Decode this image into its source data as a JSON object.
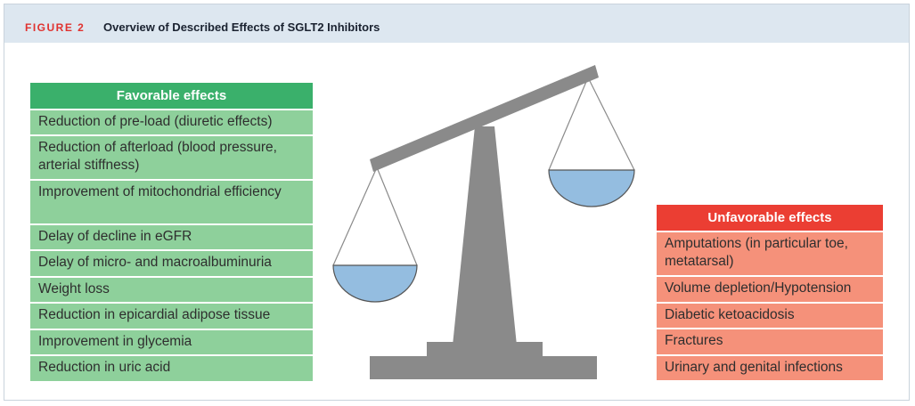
{
  "figure": {
    "label": "FIGURE 2",
    "title": "Overview of Described Effects of SGLT2 Inhibitors"
  },
  "favorable": {
    "header": "Favorable effects",
    "items": [
      "Reduction of pre-load (diuretic effects)",
      "Reduction of afterload (blood pressure, arterial stiffness)",
      "Improvement of mitochondrial efficiency",
      "Delay of decline in eGFR",
      "Delay of micro- and macroalbuminuria",
      "Weight loss",
      "Reduction in epicardial adipose tissue",
      "Improvement in glycemia",
      "Reduction in uric acid"
    ]
  },
  "unfavorable": {
    "header": "Unfavorable effects",
    "items": [
      "Amputations (in particular toe, metatarsal)",
      "Volume depletion/Hypotension",
      "Diabetic ketoacidosis",
      "Fractures",
      "Urinary and genital infections"
    ]
  },
  "colors": {
    "favorable_header": "#3ab06b",
    "favorable_row": "#8ed09b",
    "unfavorable_header": "#eb3e33",
    "unfavorable_row": "#f5917a",
    "scale_gray": "#8a8a8a",
    "pan_blue": "#94bde0",
    "header_band": "#dde7f0",
    "figure_label": "#e0322f"
  }
}
